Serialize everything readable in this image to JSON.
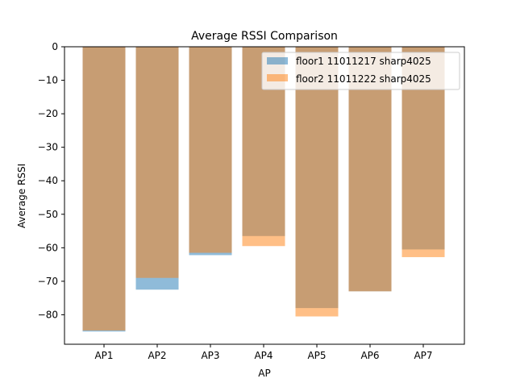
{
  "chart_data": {
    "type": "bar",
    "title": "Average RSSI Comparison",
    "xlabel": "AP",
    "ylabel": "Average RSSI",
    "categories": [
      "AP1",
      "AP2",
      "AP3",
      "AP4",
      "AP5",
      "AP6",
      "AP7"
    ],
    "ylim": [
      -88.8,
      0
    ],
    "yticks": [
      0,
      -10,
      -20,
      -30,
      -40,
      -50,
      -60,
      -70,
      -80
    ],
    "ytick_labels": [
      "0",
      "−10",
      "−20",
      "−30",
      "−40",
      "−50",
      "−60",
      "−70",
      "−80"
    ],
    "series": [
      {
        "name": "floor1 11011217 sharp4025",
        "values": [
          -85.0,
          -72.5,
          -62.2,
          -56.5,
          -78.0,
          -73.0,
          -60.5
        ],
        "color": "#1f77b4",
        "alpha": 0.5
      },
      {
        "name": "floor2 11011222 sharp4025",
        "values": [
          -84.7,
          -69.0,
          -61.5,
          -59.5,
          -80.5,
          -73.0,
          -62.8
        ],
        "color": "#ff7f0e",
        "alpha": 0.5
      }
    ],
    "bars_overlaid": true,
    "legend": "top-right",
    "grid": false
  }
}
